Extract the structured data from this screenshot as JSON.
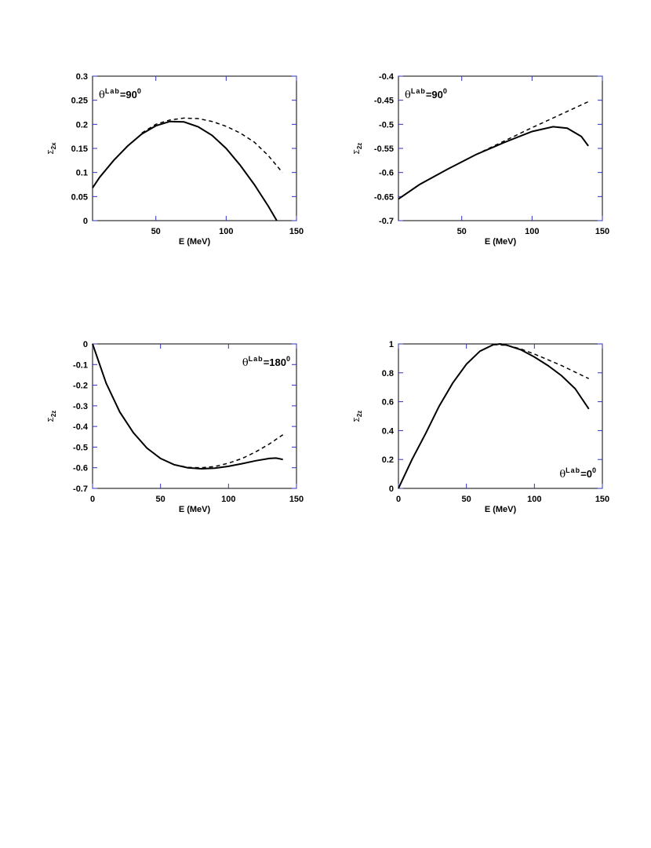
{
  "chart_data": [
    {
      "type": "line",
      "xlabel": "E  (MeV)",
      "ylabel": {
        "base": "Σ",
        "sub": "2x"
      },
      "annotation": {
        "symbol": "θ",
        "sup": "Lab",
        "text": "=90",
        "exp": "0"
      },
      "annotation_corner": "upper left",
      "xlim": [
        5,
        150
      ],
      "xticks": [
        50,
        100,
        150
      ],
      "ylim": [
        0,
        0.3
      ],
      "yticks": [
        0,
        0.05,
        0.1,
        0.15,
        0.2,
        0.25,
        0.3
      ],
      "series": [
        {
          "color": "#000000",
          "dash": false,
          "x": [
            5,
            10,
            20,
            30,
            40,
            50,
            60,
            70,
            80,
            90,
            100,
            110,
            120,
            130,
            136
          ],
          "values": [
            0.068,
            0.09,
            0.125,
            0.155,
            0.18,
            0.197,
            0.206,
            0.205,
            0.195,
            0.177,
            0.15,
            0.115,
            0.075,
            0.03,
            0
          ]
        },
        {
          "color": "#000000",
          "dash": true,
          "x": [
            40,
            50,
            60,
            70,
            80,
            90,
            100,
            110,
            120,
            130,
            140
          ],
          "values": [
            0.182,
            0.2,
            0.209,
            0.213,
            0.212,
            0.206,
            0.196,
            0.182,
            0.163,
            0.135,
            0.1
          ]
        }
      ]
    },
    {
      "type": "line",
      "xlabel": "E  (MeV)",
      "ylabel": {
        "base": "Σ",
        "sub": "2z"
      },
      "annotation": {
        "symbol": "θ",
        "sup": "Lab",
        "text": "=90",
        "exp": "0"
      },
      "annotation_corner": "upper left",
      "xlim": [
        5,
        150
      ],
      "xticks": [
        50,
        100,
        150
      ],
      "ylim": [
        -0.7,
        -0.4
      ],
      "yticks": [
        -0.7,
        -0.65,
        -0.6,
        -0.55,
        -0.5,
        -0.45,
        -0.4
      ],
      "series": [
        {
          "color": "#000000",
          "dash": false,
          "x": [
            5,
            20,
            40,
            60,
            80,
            100,
            115,
            125,
            135,
            140
          ],
          "values": [
            -0.655,
            -0.625,
            -0.593,
            -0.563,
            -0.538,
            -0.515,
            -0.505,
            -0.508,
            -0.525,
            -0.545
          ]
        },
        {
          "color": "#000000",
          "dash": true,
          "x": [
            60,
            80,
            100,
            120,
            140
          ],
          "values": [
            -0.563,
            -0.535,
            -0.507,
            -0.48,
            -0.453
          ]
        }
      ]
    },
    {
      "type": "line",
      "xlabel": "E  (MeV)",
      "ylabel": {
        "base": "Σ",
        "sub": "2z"
      },
      "annotation": {
        "symbol": "θ",
        "sup": "Lab",
        "text": "=180",
        "exp": "0"
      },
      "annotation_corner": "upper right",
      "xlim": [
        0,
        150
      ],
      "xticks": [
        0,
        50,
        100,
        150
      ],
      "ylim": [
        -0.7,
        0
      ],
      "yticks": [
        -0.7,
        -0.6,
        -0.5,
        -0.4,
        -0.3,
        -0.2,
        -0.1,
        0
      ],
      "series": [
        {
          "color": "#000000",
          "dash": false,
          "x": [
            0,
            10,
            20,
            30,
            40,
            50,
            60,
            70,
            80,
            90,
            100,
            110,
            120,
            130,
            135,
            140
          ],
          "values": [
            0,
            -0.19,
            -0.33,
            -0.43,
            -0.505,
            -0.555,
            -0.585,
            -0.6,
            -0.605,
            -0.602,
            -0.593,
            -0.58,
            -0.566,
            -0.555,
            -0.553,
            -0.56
          ]
        },
        {
          "color": "#000000",
          "dash": true,
          "x": [
            60,
            70,
            80,
            90,
            100,
            110,
            120,
            130,
            140
          ],
          "values": [
            -0.585,
            -0.598,
            -0.6,
            -0.594,
            -0.578,
            -0.555,
            -0.523,
            -0.485,
            -0.44
          ]
        }
      ]
    },
    {
      "type": "line",
      "xlabel": "E  (MeV)",
      "ylabel": {
        "base": "Σ",
        "sub": "2z"
      },
      "annotation": {
        "symbol": "θ",
        "sup": "Lab",
        "text": "=0",
        "exp": "0"
      },
      "annotation_corner": "lower right",
      "xlim": [
        0,
        150
      ],
      "xticks": [
        0,
        50,
        100,
        150
      ],
      "ylim": [
        0,
        1
      ],
      "yticks": [
        0,
        0.2,
        0.4,
        0.6,
        0.8,
        1
      ],
      "series": [
        {
          "color": "#000000",
          "dash": false,
          "x": [
            0,
            10,
            20,
            30,
            40,
            50,
            60,
            70,
            75,
            80,
            90,
            100,
            110,
            120,
            130,
            140
          ],
          "values": [
            0,
            0.2,
            0.38,
            0.57,
            0.73,
            0.86,
            0.95,
            0.995,
            1.0,
            0.99,
            0.96,
            0.91,
            0.85,
            0.78,
            0.69,
            0.55
          ]
        },
        {
          "color": "#000000",
          "dash": true,
          "x": [
            70,
            80,
            90,
            100,
            110,
            120,
            130,
            140
          ],
          "values": [
            0.995,
            0.99,
            0.965,
            0.93,
            0.89,
            0.85,
            0.805,
            0.76
          ]
        }
      ]
    }
  ]
}
